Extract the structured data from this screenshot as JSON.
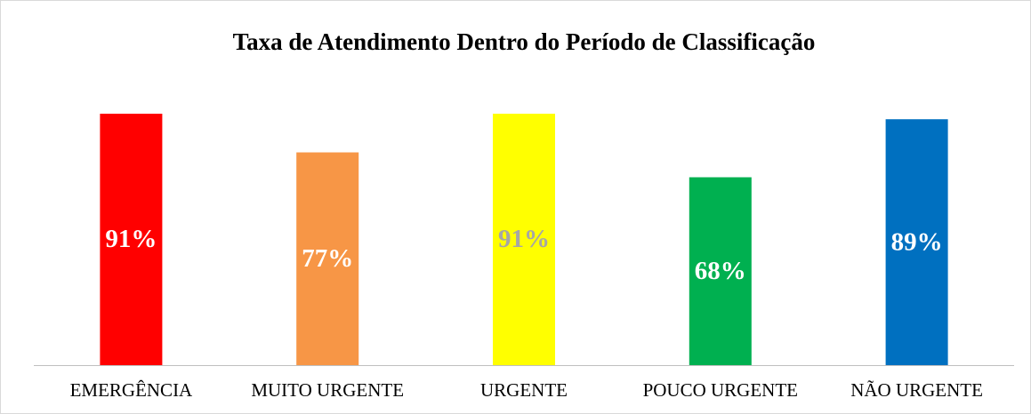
{
  "chart_data": {
    "type": "bar",
    "title": "Taxa de Atendimento Dentro do Período de Classificação",
    "categories": [
      "EMERGÊNCIA",
      "MUITO URGENTE",
      "URGENTE",
      "POUCO URGENTE",
      "NÃO URGENTE"
    ],
    "values": [
      91,
      77,
      91,
      68,
      89
    ],
    "value_labels": [
      "91%",
      "77%",
      "91%",
      "68%",
      "89%"
    ],
    "colors": [
      "#ff0000",
      "#f79646",
      "#ffff00",
      "#00b050",
      "#0070c0"
    ],
    "label_colors": [
      "#ffffff",
      "#ffffff",
      "#a6a6a6",
      "#ffffff",
      "#ffffff"
    ],
    "ylim": [
      0,
      100
    ]
  }
}
